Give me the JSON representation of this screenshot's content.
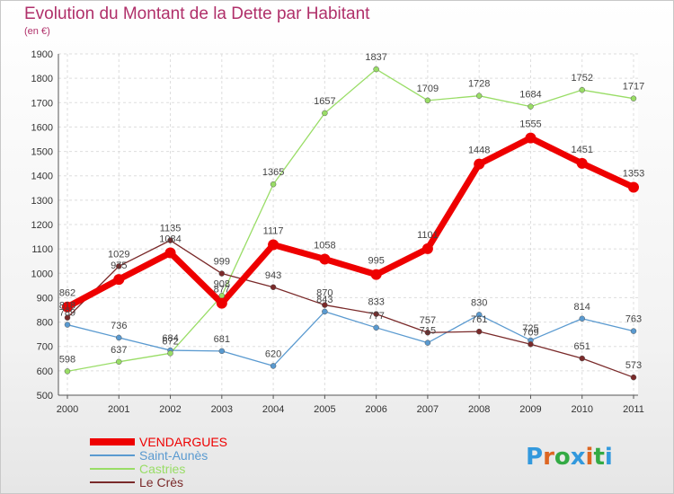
{
  "header": {
    "title": "Evolution du Montant de la Dette par Habitant",
    "unit": "(en €)"
  },
  "logo": {
    "text": "Proxiti"
  },
  "chart_data": {
    "type": "line",
    "x": [
      "2000",
      "2001",
      "2002",
      "2003",
      "2004",
      "2005",
      "2006",
      "2007",
      "2008",
      "2009",
      "2010",
      "2011"
    ],
    "yticks": [
      500,
      600,
      700,
      800,
      900,
      1000,
      1100,
      1200,
      1300,
      1400,
      1500,
      1600,
      1700,
      1800,
      1900
    ],
    "ylim": [
      500,
      1900
    ],
    "grid": true,
    "legend_position": "bottom-left",
    "series": [
      {
        "name": "Saint-Aunès",
        "color": "#5a9ad0",
        "values": [
          789,
          736,
          684,
          681,
          620,
          843,
          777,
          715,
          830,
          725,
          814,
          763
        ]
      },
      {
        "name": "Castries",
        "color": "#99dd66",
        "values": [
          598,
          637,
          672,
          908,
          1365,
          1657,
          1837,
          1709,
          1728,
          1684,
          1752,
          1717
        ]
      },
      {
        "name": "Le Crès",
        "color": "#7a2a2a",
        "values": [
          818,
          1029,
          1135,
          999,
          943,
          870,
          833,
          757,
          761,
          709,
          651,
          573
        ]
      },
      {
        "name": "VENDARGUES",
        "color": "#ee0000",
        "values": [
          862,
          975,
          1084,
          877,
          1117,
          1058,
          995,
          1101,
          1448,
          1555,
          1451,
          1353
        ]
      }
    ]
  }
}
